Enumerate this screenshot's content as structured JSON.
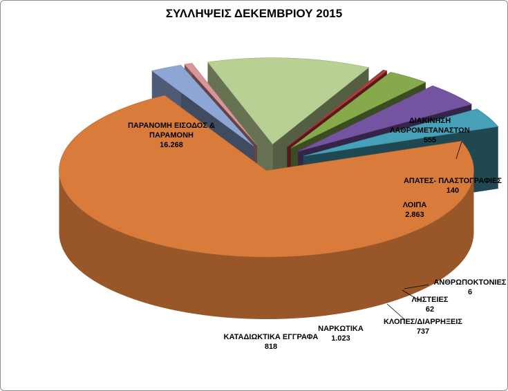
{
  "chart_data": {
    "type": "pie",
    "title": "ΣΥΛΛΗΨΕΙΣ ΔΕΚΕΜΒΡΙΟΥ 2015",
    "style": "3d-exploded",
    "slices": [
      {
        "label": "ΠΑΡΑΝΟΜΗ ΕΙΣΟΔΟΣ & ΠΑΡΑΜΟΝΗ",
        "value": 16268,
        "display": "16.268",
        "color": "#d97b3b"
      },
      {
        "label": "ΔΙΑΚΙΝΗΣΗ ΛΑΘΡΟΜΕΤΑΝΑΣΤΩΝ",
        "value": 555,
        "display": "555",
        "color": "#8ea6d6"
      },
      {
        "label": "ΑΠΑΤΕΣ- ΠΛΑΣΤΟΓΡΑΦΙΕΣ",
        "value": 140,
        "display": "140",
        "color": "#d9959a"
      },
      {
        "label": "ΛΟΙΠΑ",
        "value": 2863,
        "display": "2.863",
        "color": "#b9d095"
      },
      {
        "label": "ΑΝΘΡΩΠΟΚΤΟΝΙΕΣ",
        "value": 6,
        "display": "6",
        "color": "#6f6f6f"
      },
      {
        "label": "ΛΗΣΤΕΙΕΣ",
        "value": 62,
        "display": "62",
        "color": "#c0393b"
      },
      {
        "label": "ΚΛΟΠΕΣ/ΔΙΑΡΡΗΞΕΙΣ",
        "value": 737,
        "display": "737",
        "color": "#85a94b"
      },
      {
        "label": "ΝΑΡΚΩΤΙΚΑ",
        "value": 1023,
        "display": "1.023",
        "color": "#7453a0"
      },
      {
        "label": "ΚΑΤΑΔΙΩΚΤΙΚΑ ΕΓΓΡΑΦΑ",
        "value": 818,
        "display": "818",
        "color": "#45a0b8"
      }
    ]
  }
}
